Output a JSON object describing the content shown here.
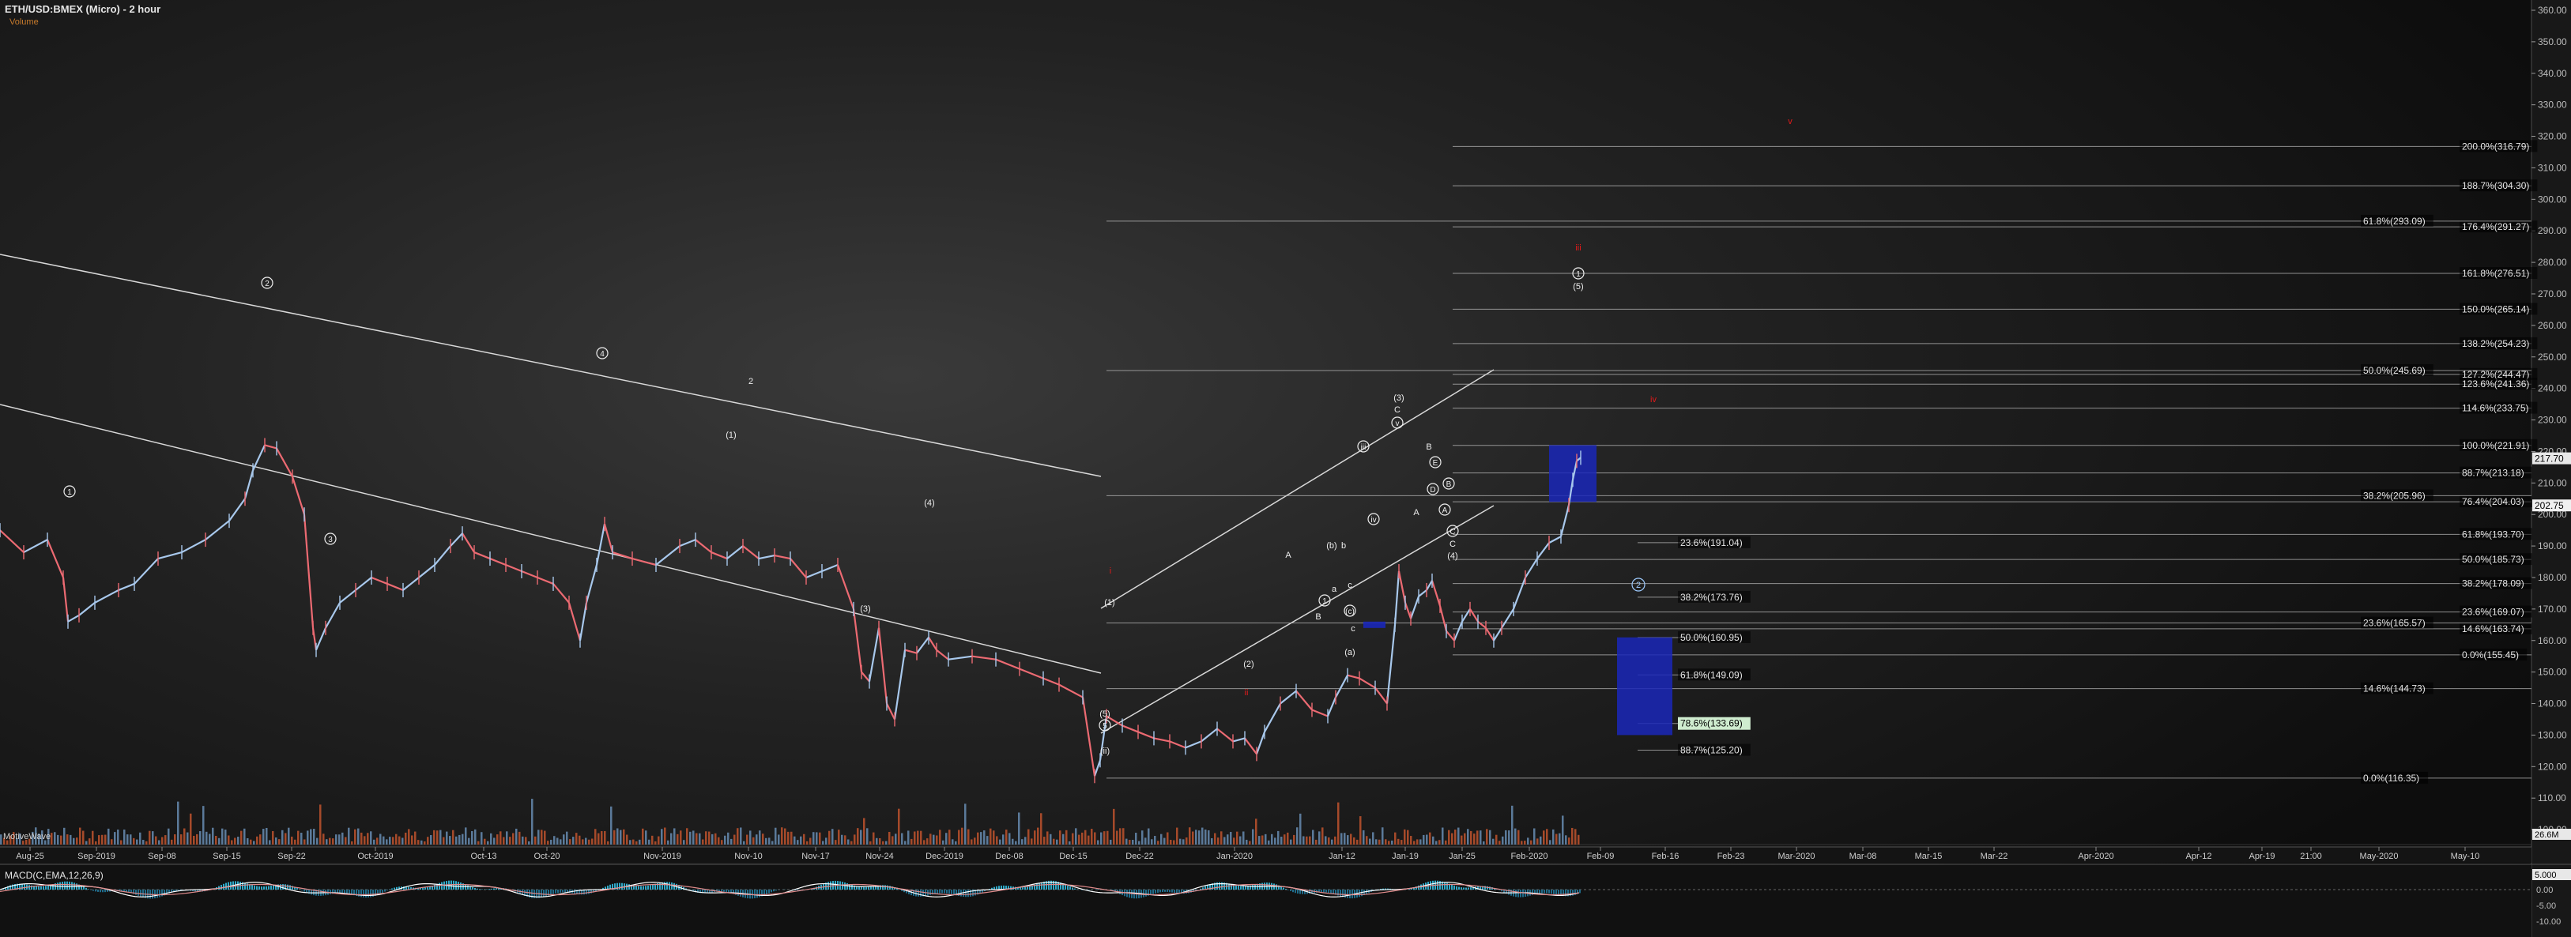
{
  "header": {
    "title": "ETH/USD:BMEX (Micro) - 2 hour",
    "subtitle": "Volume",
    "watermark": "MotiveWave",
    "macd_title": "MACD(C,EMA,12,26,9)"
  },
  "chart_data": {
    "type": "line",
    "title": "ETH/USD:BMEX (Micro) - 2 hour",
    "ylim": [
      93,
      361
    ],
    "y_axis_ticks": [
      100,
      110,
      120,
      130,
      140,
      150,
      160,
      170,
      180,
      190,
      200,
      210,
      220,
      230,
      240,
      250,
      260,
      270,
      280,
      290,
      300,
      310,
      320,
      330,
      340,
      350,
      360
    ],
    "x_tick_labels": [
      "Aug-25",
      "Sep-2019",
      "Sep-08",
      "Sep-15",
      "Sep-22",
      "Oct-2019",
      "Oct-13",
      "Oct-20",
      "Nov-2019",
      "Nov-10",
      "Nov-17",
      "Nov-24",
      "Dec-2019",
      "Dec-08",
      "Dec-15",
      "Dec-22",
      "Jan-2020",
      "Jan-12",
      "Jan-19",
      "Jan-25",
      "Feb-2020",
      "Feb-09",
      "Feb-16",
      "Feb-23",
      "Mar-2020",
      "Mar-08",
      "Mar-15",
      "Mar-22",
      "Apr-2020",
      "Apr-12",
      "Apr-19",
      "21:00",
      "May-2020",
      "May-10"
    ],
    "last_price": "217.70",
    "prev_price": "202.75",
    "price_path": [
      [
        0,
        195
      ],
      [
        30,
        188
      ],
      [
        60,
        192
      ],
      [
        80,
        180
      ],
      [
        86,
        166
      ],
      [
        100,
        168
      ],
      [
        120,
        172
      ],
      [
        150,
        176
      ],
      [
        170,
        178
      ],
      [
        200,
        186
      ],
      [
        230,
        188
      ],
      [
        260,
        192
      ],
      [
        290,
        198
      ],
      [
        310,
        205
      ],
      [
        320,
        214
      ],
      [
        335,
        222
      ],
      [
        350,
        221
      ],
      [
        370,
        212
      ],
      [
        385,
        200
      ],
      [
        396,
        164
      ],
      [
        400,
        157
      ],
      [
        412,
        164
      ],
      [
        430,
        172
      ],
      [
        450,
        176
      ],
      [
        470,
        180
      ],
      [
        490,
        178
      ],
      [
        510,
        176
      ],
      [
        530,
        180
      ],
      [
        550,
        184
      ],
      [
        570,
        190
      ],
      [
        585,
        194
      ],
      [
        600,
        188
      ],
      [
        620,
        186
      ],
      [
        640,
        184
      ],
      [
        660,
        182
      ],
      [
        680,
        180
      ],
      [
        700,
        178
      ],
      [
        720,
        172
      ],
      [
        734,
        160
      ],
      [
        742,
        172
      ],
      [
        755,
        184
      ],
      [
        765,
        197
      ],
      [
        775,
        188
      ],
      [
        800,
        186
      ],
      [
        830,
        184
      ],
      [
        860,
        190
      ],
      [
        880,
        192
      ],
      [
        900,
        188
      ],
      [
        920,
        186
      ],
      [
        940,
        190
      ],
      [
        960,
        186
      ],
      [
        980,
        187
      ],
      [
        1000,
        186
      ],
      [
        1020,
        180
      ],
      [
        1040,
        182
      ],
      [
        1060,
        184
      ],
      [
        1080,
        170
      ],
      [
        1090,
        150
      ],
      [
        1100,
        147
      ],
      [
        1112,
        164
      ],
      [
        1122,
        140
      ],
      [
        1132,
        135
      ],
      [
        1145,
        157
      ],
      [
        1160,
        156
      ],
      [
        1175,
        161
      ],
      [
        1185,
        157
      ],
      [
        1200,
        154
      ],
      [
        1230,
        155
      ],
      [
        1260,
        154
      ],
      [
        1290,
        151
      ],
      [
        1320,
        148
      ],
      [
        1340,
        146
      ],
      [
        1370,
        142
      ],
      [
        1385,
        117
      ],
      [
        1392,
        122
      ],
      [
        1400,
        136
      ],
      [
        1420,
        133
      ],
      [
        1440,
        131
      ],
      [
        1460,
        129
      ],
      [
        1480,
        128
      ],
      [
        1500,
        126
      ],
      [
        1520,
        128
      ],
      [
        1540,
        132
      ],
      [
        1560,
        128
      ],
      [
        1575,
        129
      ],
      [
        1590,
        124
      ],
      [
        1600,
        131
      ],
      [
        1620,
        140
      ],
      [
        1640,
        144
      ],
      [
        1660,
        138
      ],
      [
        1680,
        136
      ],
      [
        1690,
        142
      ],
      [
        1705,
        149
      ],
      [
        1720,
        148
      ],
      [
        1740,
        145
      ],
      [
        1755,
        140
      ],
      [
        1765,
        165
      ],
      [
        1770,
        182
      ],
      [
        1778,
        172
      ],
      [
        1785,
        167
      ],
      [
        1795,
        174
      ],
      [
        1805,
        176
      ],
      [
        1812,
        179
      ],
      [
        1822,
        171
      ],
      [
        1830,
        163
      ],
      [
        1840,
        160
      ],
      [
        1850,
        166
      ],
      [
        1860,
        170
      ],
      [
        1870,
        166
      ],
      [
        1880,
        164
      ],
      [
        1890,
        160
      ],
      [
        1900,
        164
      ],
      [
        1915,
        170
      ],
      [
        1930,
        180
      ],
      [
        1945,
        186
      ],
      [
        1960,
        191
      ],
      [
        1975,
        193
      ],
      [
        1985,
        203
      ],
      [
        1990,
        211
      ],
      [
        1995,
        217
      ],
      [
        2000,
        218
      ]
    ],
    "fib_levels": [
      {
        "label": "200.0%(316.79)",
        "price": 316.79,
        "set": "A"
      },
      {
        "label": "188.7%(304.30)",
        "price": 304.3,
        "set": "A"
      },
      {
        "label": "176.4%(291.27)",
        "price": 291.27,
        "set": "A"
      },
      {
        "label": "161.8%(276.51)",
        "price": 276.51,
        "set": "A"
      },
      {
        "label": "150.0%(265.14)",
        "price": 265.14,
        "set": "A"
      },
      {
        "label": "138.2%(254.23)",
        "price": 254.23,
        "set": "A"
      },
      {
        "label": "127.2%(244.47)",
        "price": 244.47,
        "set": "A"
      },
      {
        "label": "123.6%(241.36)",
        "price": 241.36,
        "set": "A"
      },
      {
        "label": "114.6%(233.75)",
        "price": 233.75,
        "set": "A"
      },
      {
        "label": "100.0%(221.91)",
        "price": 221.91,
        "set": "A"
      },
      {
        "label": "88.7%(213.18)",
        "price": 213.18,
        "set": "A"
      },
      {
        "label": "76.4%(204.03)",
        "price": 204.03,
        "set": "A"
      },
      {
        "label": "61.8%(193.70)",
        "price": 193.7,
        "set": "A"
      },
      {
        "label": "50.0%(185.73)",
        "price": 185.73,
        "set": "A"
      },
      {
        "label": "38.2%(178.09)",
        "price": 178.09,
        "set": "A"
      },
      {
        "label": "23.6%(169.07)",
        "price": 169.07,
        "set": "A"
      },
      {
        "label": "14.6%(163.74)",
        "price": 163.74,
        "set": "A"
      },
      {
        "label": "0.0%(155.45)",
        "price": 155.45,
        "set": "A"
      },
      {
        "label": "61.8%(293.09)",
        "price": 293.09,
        "set": "B"
      },
      {
        "label": "50.0%(245.69)",
        "price": 245.69,
        "set": "B"
      },
      {
        "label": "38.2%(205.96)",
        "price": 205.96,
        "set": "B"
      },
      {
        "label": "23.6%(165.57)",
        "price": 165.57,
        "set": "B"
      },
      {
        "label": "14.6%(144.73)",
        "price": 144.73,
        "set": "B"
      },
      {
        "label": "0.0%(116.35)",
        "price": 116.35,
        "set": "B"
      },
      {
        "label": "23.6%(191.04)",
        "price": 191.04,
        "set": "C"
      },
      {
        "label": "38.2%(173.76)",
        "price": 173.76,
        "set": "C"
      },
      {
        "label": "50.0%(160.95)",
        "price": 160.95,
        "set": "C"
      },
      {
        "label": "61.8%(149.09)",
        "price": 149.09,
        "set": "C"
      },
      {
        "label": "78.6%(133.69)",
        "price": 133.69,
        "set": "C",
        "highlight": true
      },
      {
        "label": "88.7%(125.20)",
        "price": 125.2,
        "set": "C"
      }
    ],
    "wave_labels": [
      "1",
      "2",
      "3",
      "4",
      "(1)",
      "(2)",
      "(3)",
      "(4)",
      "(5)",
      "5",
      "(ii)",
      "(i)",
      "(a)",
      "(b)",
      "(c)",
      "a",
      "b",
      "c",
      "A",
      "B",
      "C",
      "D",
      "E",
      "ii",
      "iii",
      "i",
      "iv",
      "v"
    ],
    "macd_axis": [
      "5.000",
      "0.00",
      "-5.00",
      "-10.00"
    ],
    "volume_label": "26.6M",
    "colors": {
      "fib_line": "#b8b8b8",
      "trend_line": "#d8d8d8",
      "candle_up": "#a8c8ec",
      "candle_down": "#ec6a72",
      "target_box": "#1a27b8",
      "highlight_tag": "#cfeccf",
      "wave_red": "#e31a1a"
    }
  }
}
